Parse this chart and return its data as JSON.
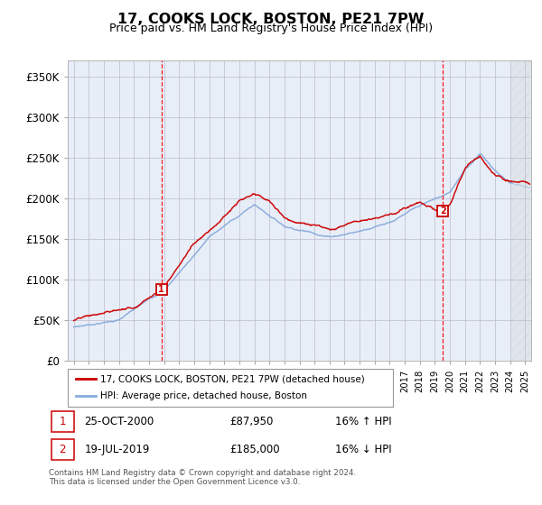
{
  "title": "17, COOKS LOCK, BOSTON, PE21 7PW",
  "subtitle": "Price paid vs. HM Land Registry's House Price Index (HPI)",
  "footer": "Contains HM Land Registry data © Crown copyright and database right 2024.\nThis data is licensed under the Open Government Licence v3.0.",
  "ylim": [
    0,
    370000
  ],
  "yticks": [
    0,
    50000,
    100000,
    150000,
    200000,
    250000,
    300000,
    350000
  ],
  "ytick_labels": [
    "£0",
    "£50K",
    "£100K",
    "£150K",
    "£200K",
    "£250K",
    "£300K",
    "£350K"
  ],
  "line_color_red": "#cc0000",
  "line_color_blue": "#88aadd",
  "plot_bg": "#e8eef8",
  "transaction1": {
    "label": "1",
    "date": "25-OCT-2000",
    "price": "£87,950",
    "hpi_change": "16% ↑ HPI",
    "x_year": 2000.82
  },
  "transaction2": {
    "label": "2",
    "date": "19-JUL-2019",
    "price": "£185,000",
    "hpi_change": "16% ↓ HPI",
    "x_year": 2019.54
  },
  "legend_red": "17, COOKS LOCK, BOSTON, PE21 7PW (detached house)",
  "legend_blue": "HPI: Average price, detached house, Boston",
  "marker1_price": 87950,
  "marker2_price": 185000,
  "xlim_left": 1994.6,
  "xlim_right": 2025.4
}
